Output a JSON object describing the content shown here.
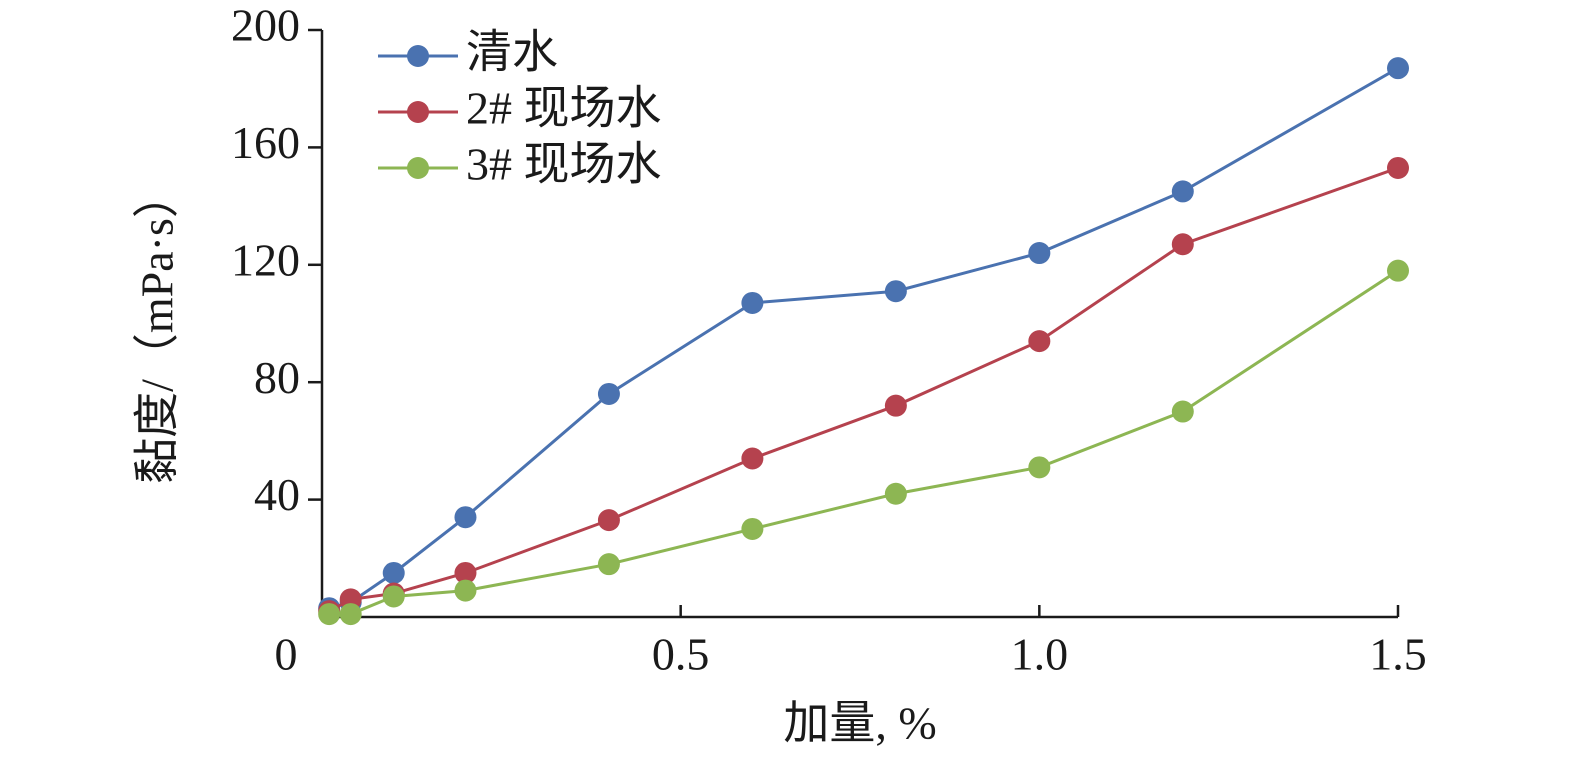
{
  "chart_data": {
    "type": "line",
    "title": "",
    "xlabel": "加量, %",
    "ylabel": "黏度/（mPa·s）",
    "xlim": [
      0,
      1.5
    ],
    "ylim": [
      0,
      200
    ],
    "x_ticks": [
      0.5,
      1.0,
      1.5
    ],
    "x_tick_labels": [
      "0.5",
      "1.0",
      "1.5"
    ],
    "y_ticks": [
      40,
      80,
      120,
      160,
      200
    ],
    "y_tick_labels": [
      "40",
      "80",
      "120",
      "160",
      "200"
    ],
    "origin_label": "0",
    "grid": false,
    "legend_position": "top-left",
    "series": [
      {
        "name": "清水",
        "color": "#4a72b0",
        "x": [
          0.01,
          0.04,
          0.1,
          0.2,
          0.4,
          0.6,
          0.8,
          1.0,
          1.2,
          1.5
        ],
        "y": [
          3,
          5,
          15,
          34,
          76,
          107,
          111,
          124,
          145,
          187
        ]
      },
      {
        "name": "2# 现场水",
        "color": "#b5424e",
        "x": [
          0.01,
          0.04,
          0.1,
          0.2,
          0.4,
          0.6,
          0.8,
          1.0,
          1.2,
          1.5
        ],
        "y": [
          2,
          6,
          8,
          15,
          33,
          54,
          72,
          94,
          127,
          153
        ]
      },
      {
        "name": "3# 现场水",
        "color": "#8db653",
        "x": [
          0.01,
          0.04,
          0.1,
          0.2,
          0.4,
          0.6,
          0.8,
          1.0,
          1.2,
          1.5
        ],
        "y": [
          1,
          1,
          7,
          9,
          18,
          30,
          42,
          51,
          70,
          118
        ]
      }
    ]
  }
}
